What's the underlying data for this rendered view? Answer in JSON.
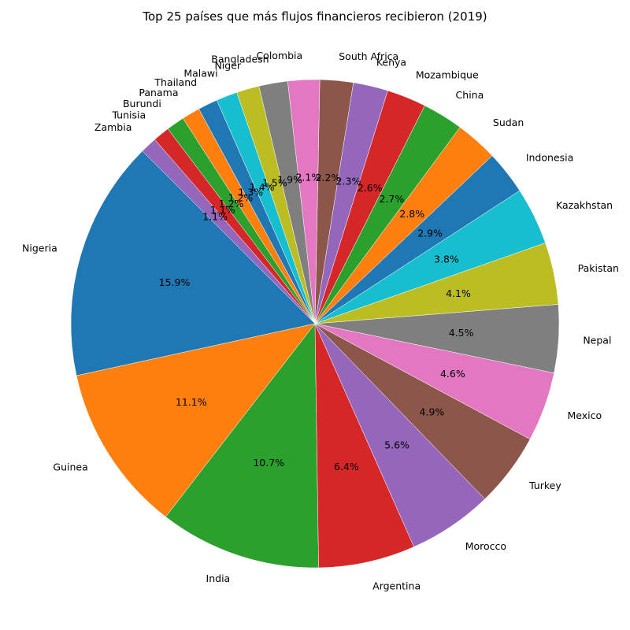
{
  "chart_data": {
    "type": "pie",
    "title": "Top 25 países que más flujos financieros recibieron (2019)",
    "start_angle_deg": 135,
    "direction": "counterclockwise",
    "slices": [
      {
        "label": "Nigeria",
        "value": 15.9,
        "pct_label": "15.9%",
        "color": "#1f77b4"
      },
      {
        "label": "Guinea",
        "value": 11.1,
        "pct_label": "11.1%",
        "color": "#ff7f0e"
      },
      {
        "label": "India",
        "value": 10.7,
        "pct_label": "10.7%",
        "color": "#2ca02c"
      },
      {
        "label": "Argentina",
        "value": 6.4,
        "pct_label": "6.4%",
        "color": "#d62728"
      },
      {
        "label": "Morocco",
        "value": 5.6,
        "pct_label": "5.6%",
        "color": "#9467bd"
      },
      {
        "label": "Turkey",
        "value": 4.9,
        "pct_label": "4.9%",
        "color": "#8c564b"
      },
      {
        "label": "Mexico",
        "value": 4.6,
        "pct_label": "4.6%",
        "color": "#e377c2"
      },
      {
        "label": "Nepal",
        "value": 4.5,
        "pct_label": "4.5%",
        "color": "#7f7f7f"
      },
      {
        "label": "Pakistan",
        "value": 4.1,
        "pct_label": "4.1%",
        "color": "#bcbd22"
      },
      {
        "label": "Kazakhstan",
        "value": 3.8,
        "pct_label": "3.8%",
        "color": "#17becf"
      },
      {
        "label": "Indonesia",
        "value": 2.9,
        "pct_label": "2.9%",
        "color": "#1f77b4"
      },
      {
        "label": "Sudan",
        "value": 2.8,
        "pct_label": "2.8%",
        "color": "#ff7f0e"
      },
      {
        "label": "China",
        "value": 2.7,
        "pct_label": "2.7%",
        "color": "#2ca02c"
      },
      {
        "label": "Mozambique",
        "value": 2.6,
        "pct_label": "2.6%",
        "color": "#d62728"
      },
      {
        "label": "Kenya",
        "value": 2.3,
        "pct_label": "2.3%",
        "color": "#9467bd"
      },
      {
        "label": "South Africa",
        "value": 2.2,
        "pct_label": "2.2%",
        "color": "#8c564b"
      },
      {
        "label": "Colombia",
        "value": 2.1,
        "pct_label": "2.1%",
        "color": "#e377c2"
      },
      {
        "label": "Bangladesh",
        "value": 1.9,
        "pct_label": "1.9%",
        "color": "#7f7f7f"
      },
      {
        "label": "Niger",
        "value": 1.5,
        "pct_label": "1.5%",
        "color": "#bcbd22"
      },
      {
        "label": "Malawi",
        "value": 1.4,
        "pct_label": "1.4%",
        "color": "#17becf"
      },
      {
        "label": "Thailand",
        "value": 1.3,
        "pct_label": "1.3%",
        "color": "#1f77b4"
      },
      {
        "label": "Panama",
        "value": 1.2,
        "pct_label": "1.2%",
        "color": "#ff7f0e"
      },
      {
        "label": "Burundi",
        "value": 1.2,
        "pct_label": "1.2%",
        "color": "#2ca02c"
      },
      {
        "label": "Tunisia",
        "value": 1.1,
        "pct_label": "1.1%",
        "color": "#d62728"
      },
      {
        "label": "Zambia",
        "value": 1.1,
        "pct_label": "1.1%",
        "color": "#9467bd"
      }
    ]
  }
}
